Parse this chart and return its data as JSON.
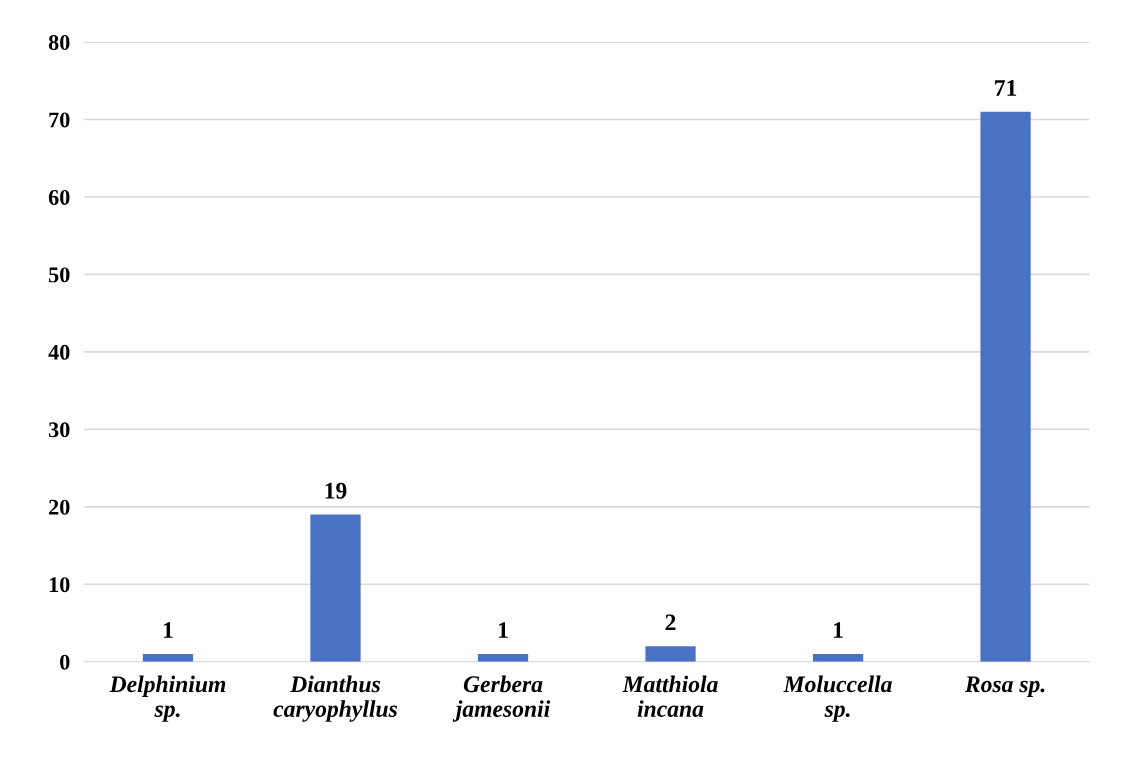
{
  "chart_data": {
    "type": "bar",
    "categories": [
      "Delphinium\nsp.",
      "Dianthus\ncaryophyllus",
      "Gerbera\njamesonii",
      "Matthiola\nincana",
      "Moluccella\nsp.",
      "Rosa sp."
    ],
    "values": [
      1,
      19,
      1,
      2,
      1,
      71
    ],
    "color": "#4a72c4",
    "ylim": [
      0,
      80
    ],
    "yticks": [
      0,
      10,
      20,
      30,
      40,
      50,
      60,
      70,
      80
    ],
    "grid": "y",
    "data_labels": true
  }
}
